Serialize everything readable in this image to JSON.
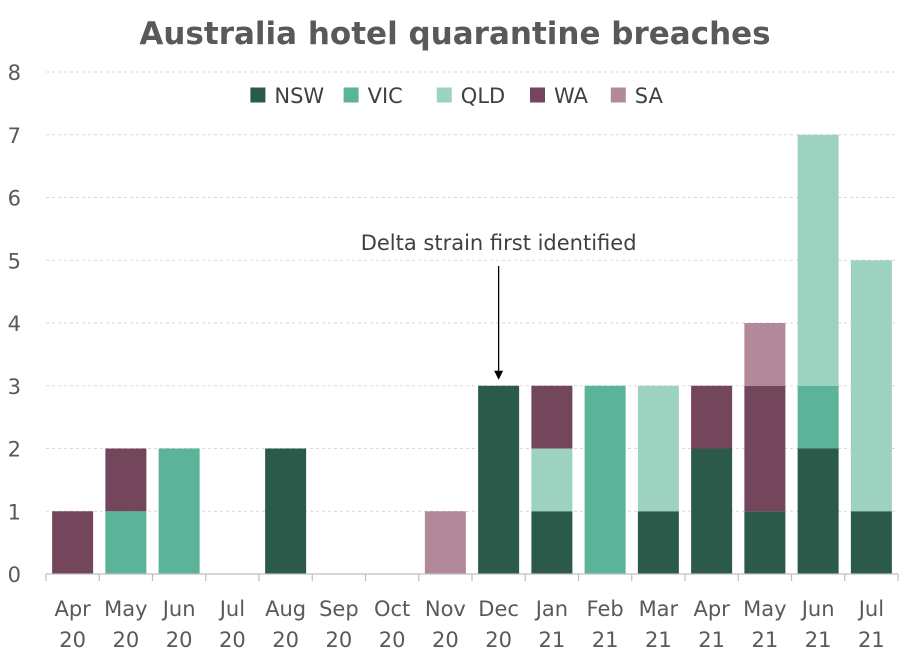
{
  "chart_data": {
    "type": "bar",
    "stacked": true,
    "title": "Australia hotel quarantine breaches",
    "xlabel": "",
    "ylabel": "",
    "ylim": [
      0,
      8
    ],
    "yticks": [
      0,
      1,
      2,
      3,
      4,
      5,
      6,
      7,
      8
    ],
    "grid": true,
    "legend_position": "top",
    "categories": [
      [
        "Apr",
        "20"
      ],
      [
        "May",
        "20"
      ],
      [
        "Jun",
        "20"
      ],
      [
        "Jul",
        "20"
      ],
      [
        "Aug",
        "20"
      ],
      [
        "Sep",
        "20"
      ],
      [
        "Oct",
        "20"
      ],
      [
        "Nov",
        "20"
      ],
      [
        "Dec",
        "20"
      ],
      [
        "Jan",
        "21"
      ],
      [
        "Feb",
        "21"
      ],
      [
        "Mar",
        "21"
      ],
      [
        "Apr",
        "21"
      ],
      [
        "May",
        "21"
      ],
      [
        "Jun",
        "21"
      ],
      [
        "Jul",
        "21"
      ]
    ],
    "series": [
      {
        "name": "NSW",
        "color": "#2b5a4b",
        "values": [
          0,
          0,
          0,
          0,
          2,
          0,
          0,
          0,
          3,
          1,
          0,
          1,
          2,
          1,
          2,
          1
        ]
      },
      {
        "name": "VIC",
        "color": "#5bb39a",
        "values": [
          0,
          1,
          2,
          0,
          0,
          0,
          0,
          0,
          0,
          0,
          3,
          0,
          0,
          0,
          1,
          0
        ]
      },
      {
        "name": "QLD",
        "color": "#9ed2c0",
        "values": [
          0,
          0,
          0,
          0,
          0,
          0,
          0,
          0,
          0,
          1,
          0,
          2,
          0,
          0,
          4,
          4
        ]
      },
      {
        "name": "WA",
        "color": "#73465b",
        "values": [
          1,
          1,
          0,
          0,
          0,
          0,
          0,
          0,
          0,
          1,
          0,
          0,
          1,
          2,
          0,
          0
        ]
      },
      {
        "name": "SA",
        "color": "#b4889b",
        "values": [
          0,
          0,
          0,
          0,
          0,
          0,
          0,
          1,
          0,
          0,
          0,
          0,
          0,
          1,
          0,
          0
        ]
      }
    ],
    "annotations": [
      {
        "text": "Delta strain first identified",
        "category_index": 8,
        "points_to_value": 3
      }
    ]
  }
}
